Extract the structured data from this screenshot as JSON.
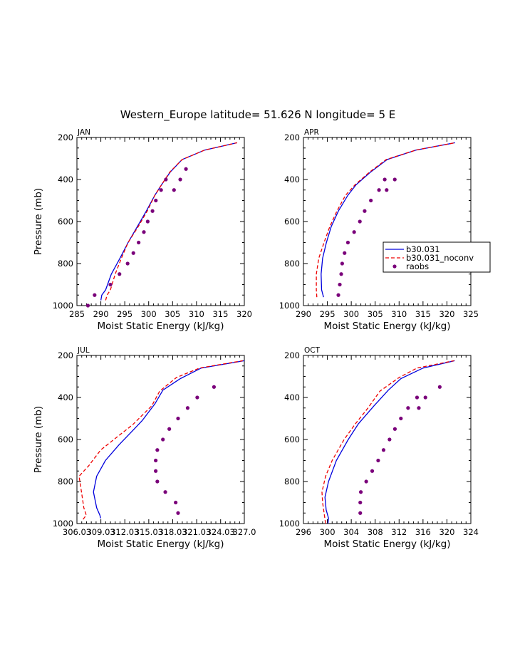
{
  "chart_data": {
    "title": "Western_Europe  latitude= 51.626 N longitude= 5 E",
    "colors": {
      "model": "#0000dd",
      "noconv": "#ee0000",
      "raobs": "#7a007a"
    },
    "legend": {
      "placement": "right of APR panel",
      "entries": [
        "b30.031",
        "b30.031_noconv",
        "raobs"
      ]
    },
    "panels": [
      {
        "type": "line",
        "month": "JAN",
        "xlabel": "Moist Static Energy (kJ/kg)",
        "ylabel": "Pressure (mb)",
        "xlim": [
          285,
          320
        ],
        "ylim": [
          1000,
          200
        ],
        "xticks": [
          285,
          290,
          295,
          300,
          305,
          310,
          315,
          320
        ],
        "xtick_labels": [
          "285",
          "290",
          "295",
          "300",
          "305",
          "310",
          "315",
          "320"
        ],
        "yticks": [
          200,
          400,
          600,
          800,
          1000
        ],
        "ytick_labels": [
          "200",
          "400",
          "600",
          "800",
          "1000"
        ],
        "series": [
          {
            "name": "b30.031",
            "style": "solid",
            "points": [
              [
                290.0,
                975
              ],
              [
                290.2,
                950
              ],
              [
                291.0,
                925
              ],
              [
                292.2,
                850
              ],
              [
                294.0,
                775
              ],
              [
                295.7,
                700
              ],
              [
                297.6,
                625
              ],
              [
                299.5,
                550
              ],
              [
                301.3,
                475
              ],
              [
                302.7,
                425
              ],
              [
                304.5,
                365
              ],
              [
                307.0,
                305
              ],
              [
                311.7,
                260
              ],
              [
                318.5,
                225
              ]
            ]
          },
          {
            "name": "b30.031_noconv",
            "style": "dashed",
            "points": [
              [
                291.0,
                975
              ],
              [
                291.3,
                950
              ],
              [
                292.0,
                925
              ],
              [
                293.0,
                850
              ],
              [
                294.3,
                775
              ],
              [
                295.7,
                700
              ],
              [
                297.8,
                625
              ],
              [
                299.7,
                550
              ],
              [
                301.3,
                475
              ],
              [
                302.7,
                425
              ],
              [
                304.4,
                365
              ],
              [
                307.0,
                305
              ],
              [
                311.7,
                260
              ],
              [
                318.5,
                225
              ]
            ]
          },
          {
            "name": "raobs",
            "style": "dots",
            "points": [
              [
                287.3,
                1000
              ],
              [
                288.7,
                950
              ],
              [
                292.0,
                900
              ],
              [
                293.9,
                850
              ],
              [
                295.6,
                800
              ],
              [
                296.8,
                750
              ],
              [
                297.9,
                700
              ],
              [
                299.0,
                650
              ],
              [
                299.8,
                600
              ],
              [
                300.8,
                550
              ],
              [
                301.5,
                500
              ],
              [
                302.6,
                450
              ],
              [
                303.6,
                400
              ],
              [
                306.6,
                400
              ],
              [
                305.3,
                450
              ],
              [
                307.8,
                350
              ]
            ]
          }
        ]
      },
      {
        "type": "line",
        "month": "APR",
        "xlabel": "Moist Static Energy (kJ/kg)",
        "ylabel": "",
        "xlim": [
          290,
          325
        ],
        "ylim": [
          1000,
          200
        ],
        "xticks": [
          290,
          295,
          300,
          305,
          310,
          315,
          320,
          325
        ],
        "xtick_labels": [
          "290",
          "295",
          "300",
          "305",
          "310",
          "315",
          "320",
          "325"
        ],
        "yticks": [
          200,
          400,
          600,
          800,
          1000
        ],
        "ytick_labels": [
          "200",
          "400",
          "600",
          "800",
          "1000"
        ],
        "series": [
          {
            "name": "b30.031",
            "style": "solid",
            "points": [
              [
                294.2,
                960
              ],
              [
                293.8,
                925
              ],
              [
                293.7,
                850
              ],
              [
                294.0,
                775
              ],
              [
                294.8,
                700
              ],
              [
                295.8,
                625
              ],
              [
                297.3,
                550
              ],
              [
                299.3,
                475
              ],
              [
                301.0,
                425
              ],
              [
                304.0,
                365
              ],
              [
                307.5,
                305
              ],
              [
                313.5,
                260
              ],
              [
                321.7,
                225
              ]
            ]
          },
          {
            "name": "b30.031_noconv",
            "style": "dashed",
            "points": [
              [
                292.8,
                960
              ],
              [
                292.7,
                925
              ],
              [
                292.7,
                850
              ],
              [
                293.2,
                775
              ],
              [
                294.3,
                700
              ],
              [
                295.5,
                625
              ],
              [
                297.0,
                550
              ],
              [
                298.8,
                475
              ],
              [
                300.8,
                425
              ],
              [
                303.8,
                365
              ],
              [
                307.3,
                305
              ],
              [
                313.5,
                260
              ],
              [
                321.7,
                225
              ]
            ]
          },
          {
            "name": "raobs",
            "style": "dots",
            "points": [
              [
                297.3,
                950
              ],
              [
                297.6,
                900
              ],
              [
                297.9,
                850
              ],
              [
                298.1,
                800
              ],
              [
                298.6,
                750
              ],
              [
                299.3,
                700
              ],
              [
                300.6,
                650
              ],
              [
                301.8,
                600
              ],
              [
                302.8,
                550
              ],
              [
                304.1,
                500
              ],
              [
                305.8,
                450
              ],
              [
                307.0,
                400
              ],
              [
                309.1,
                400
              ],
              [
                307.4,
                450
              ]
            ]
          }
        ]
      },
      {
        "type": "line",
        "month": "JUL",
        "xlabel": "Moist Static Energy (kJ/kg)",
        "ylabel": "Pressure (mb)",
        "xlim": [
          306.03,
          327.0
        ],
        "ylim": [
          1000,
          200
        ],
        "xticks": [
          306.03,
          309.03,
          312.03,
          315.03,
          318.03,
          321.03,
          324.03,
          327.0
        ],
        "xtick_labels": [
          "306.03",
          "09.03",
          "12.03",
          "15.03",
          "18.03",
          "21.03",
          "24.03",
          "27.0"
        ],
        "xtick_prefix": [
          "306.03",
          "3",
          "3",
          "3",
          "3",
          "3",
          "3",
          "3"
        ],
        "yticks": [
          200,
          400,
          600,
          800,
          1000
        ],
        "ytick_labels": [
          "200",
          "400",
          "600",
          "800",
          "1000"
        ],
        "series": [
          {
            "name": "b30.031",
            "style": "solid",
            "points": [
              [
                309.0,
                975
              ],
              [
                308.9,
                960
              ],
              [
                308.5,
                925
              ],
              [
                308.1,
                850
              ],
              [
                308.5,
                775
              ],
              [
                309.6,
                700
              ],
              [
                311.3,
                625
              ],
              [
                313.2,
                550
              ],
              [
                314.2,
                510
              ],
              [
                315.8,
                430
              ],
              [
                316.8,
                365
              ],
              [
                319.0,
                310
              ],
              [
                321.6,
                260
              ],
              [
                327.0,
                225
              ]
            ]
          },
          {
            "name": "b30.031_noconv",
            "style": "dashed",
            "points": [
              [
                306.8,
                980
              ],
              [
                307.2,
                960
              ],
              [
                306.9,
                925
              ],
              [
                306.6,
                850
              ],
              [
                306.3,
                775
              ],
              [
                307.5,
                725
              ],
              [
                309.0,
                650
              ],
              [
                311.0,
                590
              ],
              [
                313.0,
                530
              ],
              [
                315.4,
                440
              ],
              [
                316.4,
                370
              ],
              [
                318.5,
                305
              ],
              [
                321.4,
                260
              ],
              [
                326.8,
                225
              ]
            ]
          },
          {
            "name": "raobs",
            "style": "dots",
            "points": [
              [
                318.7,
                950
              ],
              [
                318.4,
                900
              ],
              [
                317.1,
                850
              ],
              [
                316.1,
                800
              ],
              [
                315.9,
                750
              ],
              [
                315.9,
                700
              ],
              [
                316.1,
                650
              ],
              [
                316.8,
                600
              ],
              [
                317.6,
                550
              ],
              [
                318.7,
                500
              ],
              [
                319.9,
                450
              ],
              [
                321.1,
                400
              ],
              [
                323.2,
                350
              ]
            ]
          }
        ]
      },
      {
        "type": "line",
        "month": "OCT",
        "xlabel": "Moist Static Energy (kJ/kg)",
        "ylabel": "",
        "xlim": [
          296,
          324
        ],
        "ylim": [
          1000,
          200
        ],
        "xticks": [
          296,
          300,
          304,
          308,
          312,
          316,
          320,
          324
        ],
        "xtick_labels": [
          "296",
          "300",
          "304",
          "308",
          "312",
          "316",
          "320",
          "324"
        ],
        "yticks": [
          200,
          400,
          600,
          800,
          1000
        ],
        "ytick_labels": [
          "200",
          "400",
          "600",
          "800",
          "1000"
        ],
        "series": [
          {
            "name": "b30.031",
            "style": "solid",
            "points": [
              [
                300.1,
                1000
              ],
              [
                300.2,
                975
              ],
              [
                299.8,
                935
              ],
              [
                299.6,
                875
              ],
              [
                300.2,
                800
              ],
              [
                301.5,
                700
              ],
              [
                303.5,
                600
              ],
              [
                305.2,
                525
              ],
              [
                307.8,
                440
              ],
              [
                310.2,
                365
              ],
              [
                312.3,
                310
              ],
              [
                316.0,
                260
              ],
              [
                321.3,
                225
              ]
            ]
          },
          {
            "name": "b30.031_noconv",
            "style": "dashed",
            "points": [
              [
                299.7,
                1000
              ],
              [
                299.5,
                960
              ],
              [
                299.2,
                900
              ],
              [
                299.1,
                850
              ],
              [
                299.7,
                775
              ],
              [
                300.8,
                700
              ],
              [
                302.8,
                600
              ],
              [
                304.7,
                525
              ],
              [
                306.8,
                450
              ],
              [
                308.8,
                370
              ],
              [
                312.0,
                305
              ],
              [
                315.0,
                260
              ],
              [
                321.2,
                225
              ]
            ]
          },
          {
            "name": "raobs",
            "style": "dots",
            "points": [
              [
                305.5,
                950
              ],
              [
                305.5,
                900
              ],
              [
                305.6,
                850
              ],
              [
                306.5,
                800
              ],
              [
                307.5,
                750
              ],
              [
                308.5,
                700
              ],
              [
                309.4,
                650
              ],
              [
                310.4,
                600
              ],
              [
                311.3,
                550
              ],
              [
                312.3,
                500
              ],
              [
                313.5,
                450
              ],
              [
                315.0,
                400
              ],
              [
                316.4,
                400
              ],
              [
                315.3,
                450
              ],
              [
                318.8,
                350
              ]
            ]
          }
        ]
      }
    ]
  }
}
